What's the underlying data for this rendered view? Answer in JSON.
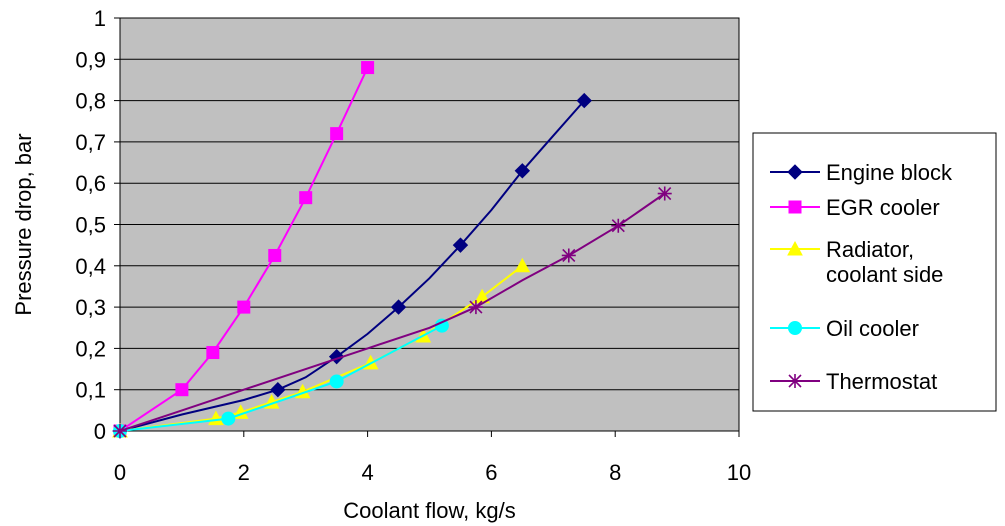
{
  "chart_data": {
    "type": "line",
    "title": "",
    "xlabel": "Coolant flow, kg/s",
    "ylabel": "Pressure drop, bar",
    "xlim": [
      0,
      10
    ],
    "ylim": [
      0,
      1
    ],
    "x_ticks": [
      0,
      2,
      4,
      6,
      8,
      10
    ],
    "y_ticks": [
      0,
      0.1,
      0.2,
      0.3,
      0.4,
      0.5,
      0.6,
      0.7,
      0.8,
      0.9,
      1
    ],
    "x_tick_labels": [
      "0",
      "2",
      "4",
      "6",
      "8",
      "10"
    ],
    "y_tick_labels": [
      "0",
      "0,1",
      "0,2",
      "0,3",
      "0,4",
      "0,5",
      "0,6",
      "0,7",
      "0,8",
      "0,9",
      "1"
    ],
    "grid": "horizontal",
    "plot_background": "#c0c0c0",
    "legend_position": "right",
    "series": [
      {
        "name": "Engine block",
        "color": "#000080",
        "marker": "diamond",
        "points": [
          [
            0,
            0
          ],
          [
            2.55,
            0.1
          ],
          [
            3.5,
            0.18
          ],
          [
            4.5,
            0.3
          ],
          [
            5.5,
            0.45
          ],
          [
            6.5,
            0.63
          ],
          [
            7.5,
            0.8
          ]
        ],
        "curve": [
          [
            0,
            0
          ],
          [
            1,
            0.04
          ],
          [
            2,
            0.075
          ],
          [
            2.55,
            0.1
          ],
          [
            3,
            0.13
          ],
          [
            3.5,
            0.18
          ],
          [
            4,
            0.235
          ],
          [
            4.5,
            0.3
          ],
          [
            5,
            0.37
          ],
          [
            5.5,
            0.45
          ],
          [
            6,
            0.535
          ],
          [
            6.5,
            0.63
          ],
          [
            7,
            0.715
          ],
          [
            7.5,
            0.8
          ]
        ]
      },
      {
        "name": "EGR cooler",
        "color": "#ff00ff",
        "marker": "square",
        "points": [
          [
            0,
            0
          ],
          [
            1,
            0.1
          ],
          [
            1.5,
            0.19
          ],
          [
            2,
            0.3
          ],
          [
            2.5,
            0.425
          ],
          [
            3,
            0.565
          ],
          [
            3.5,
            0.72
          ],
          [
            4,
            0.88
          ]
        ]
      },
      {
        "name": "Radiator, coolant side",
        "legend_lines": [
          "Radiator,",
          "coolant side"
        ],
        "color": "#ffff00",
        "marker": "triangle",
        "points": [
          [
            0,
            0
          ],
          [
            1.55,
            0.03
          ],
          [
            1.95,
            0.045
          ],
          [
            2.45,
            0.07
          ],
          [
            2.95,
            0.095
          ],
          [
            4.05,
            0.165
          ],
          [
            4.9,
            0.23
          ],
          [
            5.85,
            0.325
          ],
          [
            6.5,
            0.4
          ]
        ]
      },
      {
        "name": "Oil cooler",
        "color": "#00ffff",
        "marker": "circle",
        "points": [
          [
            0,
            0
          ],
          [
            1.75,
            0.03
          ],
          [
            3.5,
            0.12
          ],
          [
            5.2,
            0.255
          ]
        ]
      },
      {
        "name": "Thermostat",
        "color": "#800080",
        "marker": "star",
        "points": [
          [
            0,
            0
          ],
          [
            5.75,
            0.3
          ],
          [
            7.25,
            0.425
          ],
          [
            8.05,
            0.497
          ],
          [
            8.8,
            0.575
          ]
        ],
        "curve": [
          [
            0,
            0
          ],
          [
            1,
            0.05
          ],
          [
            2,
            0.1
          ],
          [
            3,
            0.15
          ],
          [
            4,
            0.2
          ],
          [
            5,
            0.25
          ],
          [
            5.75,
            0.3
          ],
          [
            6.5,
            0.365
          ],
          [
            7,
            0.405
          ],
          [
            7.25,
            0.425
          ],
          [
            8.05,
            0.497
          ],
          [
            8.8,
            0.575
          ]
        ]
      }
    ]
  }
}
